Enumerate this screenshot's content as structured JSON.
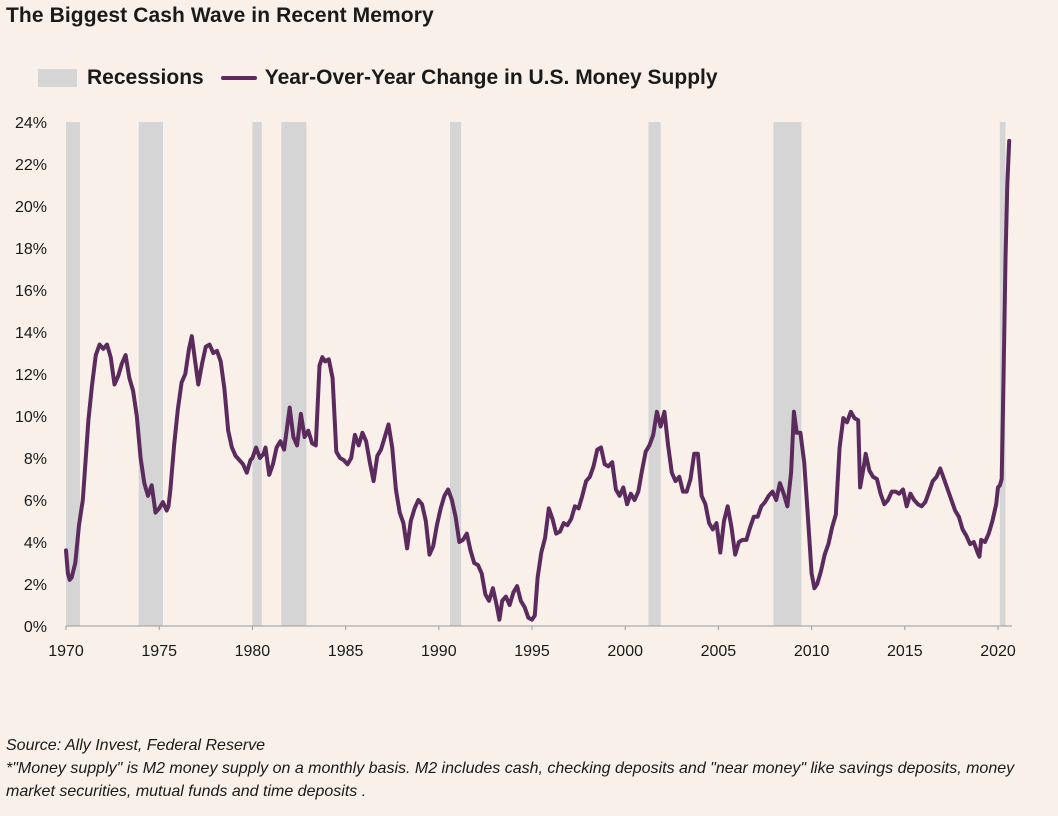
{
  "title": "The Biggest Cash Wave in Recent Memory",
  "source": "Source: Ally Invest, Federal Reserve",
  "note": "*\"Money supply\" is M2 money supply on a monthly basis. M2 includes cash, checking deposits and \"near money\" like savings deposits, money market securities, mutual funds and time deposits .",
  "chart_data": {
    "type": "line",
    "title": "The Biggest Cash Wave in Recent Memory",
    "xlabel": "",
    "ylabel": "",
    "xlim": [
      1970,
      2020.75
    ],
    "ylim": [
      0,
      24
    ],
    "x_ticks": [
      1970,
      1975,
      1980,
      1985,
      1990,
      1995,
      2000,
      2005,
      2010,
      2015,
      2020
    ],
    "x_tick_labels": [
      "1970",
      "1975",
      "1980",
      "1985",
      "1990",
      "1995",
      "2000",
      "2005",
      "2010",
      "2015",
      "2020"
    ],
    "y_ticks": [
      0,
      2,
      4,
      6,
      8,
      10,
      12,
      14,
      16,
      18,
      20,
      22,
      24
    ],
    "y_tick_labels": [
      "0%",
      "2%",
      "4%",
      "6%",
      "8%",
      "10%",
      "12%",
      "14%",
      "16%",
      "18%",
      "20%",
      "22%",
      "24%"
    ],
    "grid": false,
    "legend": {
      "placement": "top-left",
      "entries": [
        "Recessions",
        "Year-Over-Year Change in U.S. Money Supply"
      ]
    },
    "recessions": {
      "name": "Recessions",
      "color": "#d5d5d5",
      "periods": [
        [
          1970.0,
          1970.75
        ],
        [
          1973.9,
          1975.2
        ],
        [
          1980.0,
          1980.5
        ],
        [
          1981.55,
          1982.9
        ],
        [
          1990.6,
          1991.2
        ],
        [
          2001.25,
          2001.9
        ],
        [
          2007.95,
          2009.45
        ],
        [
          2020.1,
          2020.4
        ]
      ]
    },
    "series": [
      {
        "name": "Year-Over-Year Change in U.S. Money Supply",
        "color": "#5c2b5e",
        "points": [
          [
            1970.0,
            3.6
          ],
          [
            1970.1,
            2.5
          ],
          [
            1970.2,
            2.2
          ],
          [
            1970.3,
            2.3
          ],
          [
            1970.5,
            3.0
          ],
          [
            1970.7,
            4.8
          ],
          [
            1970.9,
            6.0
          ],
          [
            1971.0,
            7.2
          ],
          [
            1971.2,
            9.8
          ],
          [
            1971.4,
            11.5
          ],
          [
            1971.6,
            12.9
          ],
          [
            1971.8,
            13.4
          ],
          [
            1972.0,
            13.2
          ],
          [
            1972.2,
            13.4
          ],
          [
            1972.4,
            12.8
          ],
          [
            1972.6,
            11.5
          ],
          [
            1972.8,
            11.9
          ],
          [
            1973.0,
            12.5
          ],
          [
            1973.2,
            12.9
          ],
          [
            1973.4,
            11.8
          ],
          [
            1973.6,
            11.2
          ],
          [
            1973.8,
            10.0
          ],
          [
            1974.0,
            8.0
          ],
          [
            1974.2,
            6.8
          ],
          [
            1974.4,
            6.2
          ],
          [
            1974.6,
            6.7
          ],
          [
            1974.8,
            5.4
          ],
          [
            1975.0,
            5.6
          ],
          [
            1975.2,
            5.9
          ],
          [
            1975.4,
            5.5
          ],
          [
            1975.5,
            5.7
          ],
          [
            1975.6,
            6.5
          ],
          [
            1975.8,
            8.6
          ],
          [
            1976.0,
            10.3
          ],
          [
            1976.2,
            11.6
          ],
          [
            1976.4,
            12.0
          ],
          [
            1976.6,
            13.2
          ],
          [
            1976.75,
            13.8
          ],
          [
            1976.9,
            12.8
          ],
          [
            1977.1,
            11.5
          ],
          [
            1977.3,
            12.5
          ],
          [
            1977.5,
            13.3
          ],
          [
            1977.7,
            13.4
          ],
          [
            1977.9,
            13.0
          ],
          [
            1978.1,
            13.1
          ],
          [
            1978.3,
            12.6
          ],
          [
            1978.5,
            11.3
          ],
          [
            1978.7,
            9.3
          ],
          [
            1978.9,
            8.5
          ],
          [
            1979.1,
            8.1
          ],
          [
            1979.3,
            7.9
          ],
          [
            1979.5,
            7.7
          ],
          [
            1979.7,
            7.3
          ],
          [
            1979.9,
            7.9
          ],
          [
            1980.0,
            8.0
          ],
          [
            1980.2,
            8.5
          ],
          [
            1980.4,
            8.0
          ],
          [
            1980.6,
            8.2
          ],
          [
            1980.7,
            8.5
          ],
          [
            1980.9,
            7.2
          ],
          [
            1981.1,
            7.7
          ],
          [
            1981.3,
            8.5
          ],
          [
            1981.5,
            8.8
          ],
          [
            1981.7,
            8.4
          ],
          [
            1981.85,
            9.4
          ],
          [
            1982.0,
            10.4
          ],
          [
            1982.2,
            9.0
          ],
          [
            1982.4,
            8.6
          ],
          [
            1982.6,
            10.1
          ],
          [
            1982.8,
            9.0
          ],
          [
            1983.0,
            9.3
          ],
          [
            1983.2,
            8.7
          ],
          [
            1983.4,
            8.6
          ],
          [
            1983.6,
            12.4
          ],
          [
            1983.75,
            12.8
          ],
          [
            1983.9,
            12.6
          ],
          [
            1984.1,
            12.7
          ],
          [
            1984.3,
            11.8
          ],
          [
            1984.5,
            8.3
          ],
          [
            1984.7,
            8.0
          ],
          [
            1984.9,
            7.9
          ],
          [
            1985.1,
            7.7
          ],
          [
            1985.3,
            8.0
          ],
          [
            1985.5,
            9.1
          ],
          [
            1985.7,
            8.6
          ],
          [
            1985.9,
            9.2
          ],
          [
            1986.1,
            8.8
          ],
          [
            1986.3,
            7.8
          ],
          [
            1986.5,
            6.9
          ],
          [
            1986.7,
            8.1
          ],
          [
            1986.9,
            8.4
          ],
          [
            1987.1,
            9.0
          ],
          [
            1987.3,
            9.6
          ],
          [
            1987.5,
            8.5
          ],
          [
            1987.7,
            6.5
          ],
          [
            1987.9,
            5.4
          ],
          [
            1988.1,
            4.9
          ],
          [
            1988.3,
            3.7
          ],
          [
            1988.5,
            5.0
          ],
          [
            1988.7,
            5.6
          ],
          [
            1988.9,
            6.0
          ],
          [
            1989.1,
            5.8
          ],
          [
            1989.3,
            5.0
          ],
          [
            1989.5,
            3.4
          ],
          [
            1989.7,
            3.8
          ],
          [
            1989.9,
            4.8
          ],
          [
            1990.1,
            5.6
          ],
          [
            1990.3,
            6.2
          ],
          [
            1990.5,
            6.5
          ],
          [
            1990.7,
            6.0
          ],
          [
            1990.9,
            5.2
          ],
          [
            1991.1,
            4.0
          ],
          [
            1991.3,
            4.1
          ],
          [
            1991.5,
            4.4
          ],
          [
            1991.7,
            3.6
          ],
          [
            1991.9,
            3.0
          ],
          [
            1992.1,
            2.9
          ],
          [
            1992.3,
            2.5
          ],
          [
            1992.5,
            1.5
          ],
          [
            1992.7,
            1.2
          ],
          [
            1992.9,
            1.8
          ],
          [
            1993.1,
            1.0
          ],
          [
            1993.25,
            0.3
          ],
          [
            1993.4,
            1.2
          ],
          [
            1993.6,
            1.4
          ],
          [
            1993.8,
            1.0
          ],
          [
            1994.0,
            1.6
          ],
          [
            1994.2,
            1.9
          ],
          [
            1994.4,
            1.2
          ],
          [
            1994.6,
            0.9
          ],
          [
            1994.8,
            0.4
          ],
          [
            1995.0,
            0.3
          ],
          [
            1995.15,
            0.5
          ],
          [
            1995.3,
            2.3
          ],
          [
            1995.5,
            3.5
          ],
          [
            1995.7,
            4.2
          ],
          [
            1995.9,
            5.6
          ],
          [
            1996.1,
            5.1
          ],
          [
            1996.3,
            4.4
          ],
          [
            1996.5,
            4.5
          ],
          [
            1996.7,
            4.9
          ],
          [
            1996.9,
            4.8
          ],
          [
            1997.1,
            5.1
          ],
          [
            1997.3,
            5.7
          ],
          [
            1997.5,
            5.6
          ],
          [
            1997.7,
            6.2
          ],
          [
            1997.9,
            6.9
          ],
          [
            1998.1,
            7.1
          ],
          [
            1998.3,
            7.6
          ],
          [
            1998.5,
            8.4
          ],
          [
            1998.7,
            8.5
          ],
          [
            1998.9,
            7.7
          ],
          [
            1999.1,
            7.6
          ],
          [
            1999.3,
            7.8
          ],
          [
            1999.5,
            6.5
          ],
          [
            1999.7,
            6.2
          ],
          [
            1999.9,
            6.6
          ],
          [
            2000.1,
            5.8
          ],
          [
            2000.3,
            6.3
          ],
          [
            2000.5,
            6.0
          ],
          [
            2000.7,
            6.4
          ],
          [
            2000.9,
            7.4
          ],
          [
            2001.1,
            8.3
          ],
          [
            2001.3,
            8.6
          ],
          [
            2001.5,
            9.1
          ],
          [
            2001.7,
            10.2
          ],
          [
            2001.9,
            9.5
          ],
          [
            2002.1,
            10.2
          ],
          [
            2002.3,
            8.6
          ],
          [
            2002.5,
            7.3
          ],
          [
            2002.7,
            6.9
          ],
          [
            2002.9,
            7.1
          ],
          [
            2003.1,
            6.4
          ],
          [
            2003.3,
            6.4
          ],
          [
            2003.5,
            7.0
          ],
          [
            2003.7,
            8.2
          ],
          [
            2003.9,
            8.2
          ],
          [
            2004.1,
            6.2
          ],
          [
            2004.3,
            5.8
          ],
          [
            2004.5,
            4.9
          ],
          [
            2004.7,
            4.6
          ],
          [
            2004.9,
            4.9
          ],
          [
            2005.1,
            3.5
          ],
          [
            2005.3,
            5.0
          ],
          [
            2005.5,
            5.7
          ],
          [
            2005.7,
            4.7
          ],
          [
            2005.9,
            3.4
          ],
          [
            2006.1,
            4.0
          ],
          [
            2006.3,
            4.1
          ],
          [
            2006.5,
            4.1
          ],
          [
            2006.7,
            4.7
          ],
          [
            2006.9,
            5.2
          ],
          [
            2007.1,
            5.2
          ],
          [
            2007.3,
            5.7
          ],
          [
            2007.5,
            5.9
          ],
          [
            2007.7,
            6.2
          ],
          [
            2007.9,
            6.4
          ],
          [
            2008.1,
            6.0
          ],
          [
            2008.3,
            6.8
          ],
          [
            2008.5,
            6.3
          ],
          [
            2008.7,
            5.7
          ],
          [
            2008.9,
            7.3
          ],
          [
            2009.05,
            10.2
          ],
          [
            2009.2,
            9.2
          ],
          [
            2009.4,
            9.2
          ],
          [
            2009.6,
            7.8
          ],
          [
            2009.8,
            5.2
          ],
          [
            2010.0,
            2.5
          ],
          [
            2010.15,
            1.8
          ],
          [
            2010.3,
            2.0
          ],
          [
            2010.5,
            2.6
          ],
          [
            2010.7,
            3.4
          ],
          [
            2010.9,
            3.9
          ],
          [
            2011.1,
            4.7
          ],
          [
            2011.3,
            5.3
          ],
          [
            2011.5,
            8.5
          ],
          [
            2011.7,
            9.9
          ],
          [
            2011.9,
            9.7
          ],
          [
            2012.1,
            10.2
          ],
          [
            2012.3,
            9.9
          ],
          [
            2012.5,
            9.8
          ],
          [
            2012.6,
            6.6
          ],
          [
            2012.8,
            7.6
          ],
          [
            2012.9,
            8.2
          ],
          [
            2013.1,
            7.4
          ],
          [
            2013.3,
            7.1
          ],
          [
            2013.5,
            7.0
          ],
          [
            2013.7,
            6.3
          ],
          [
            2013.9,
            5.8
          ],
          [
            2014.1,
            6.0
          ],
          [
            2014.3,
            6.4
          ],
          [
            2014.5,
            6.4
          ],
          [
            2014.7,
            6.3
          ],
          [
            2014.9,
            6.5
          ],
          [
            2015.1,
            5.7
          ],
          [
            2015.3,
            6.3
          ],
          [
            2015.5,
            6.0
          ],
          [
            2015.7,
            5.8
          ],
          [
            2015.9,
            5.7
          ],
          [
            2016.1,
            5.9
          ],
          [
            2016.3,
            6.4
          ],
          [
            2016.5,
            6.9
          ],
          [
            2016.7,
            7.1
          ],
          [
            2016.9,
            7.5
          ],
          [
            2017.1,
            7.0
          ],
          [
            2017.3,
            6.5
          ],
          [
            2017.5,
            6.0
          ],
          [
            2017.7,
            5.5
          ],
          [
            2017.9,
            5.2
          ],
          [
            2018.1,
            4.6
          ],
          [
            2018.3,
            4.3
          ],
          [
            2018.5,
            3.9
          ],
          [
            2018.7,
            4.0
          ],
          [
            2018.9,
            3.5
          ],
          [
            2019.0,
            3.3
          ],
          [
            2019.1,
            4.1
          ],
          [
            2019.3,
            4.0
          ],
          [
            2019.5,
            4.4
          ],
          [
            2019.7,
            5.0
          ],
          [
            2019.9,
            5.8
          ],
          [
            2020.0,
            6.6
          ],
          [
            2020.1,
            6.7
          ],
          [
            2020.2,
            7.0
          ],
          [
            2020.3,
            12.0
          ],
          [
            2020.4,
            17.5
          ],
          [
            2020.5,
            21.0
          ],
          [
            2020.6,
            23.1
          ]
        ]
      }
    ]
  }
}
